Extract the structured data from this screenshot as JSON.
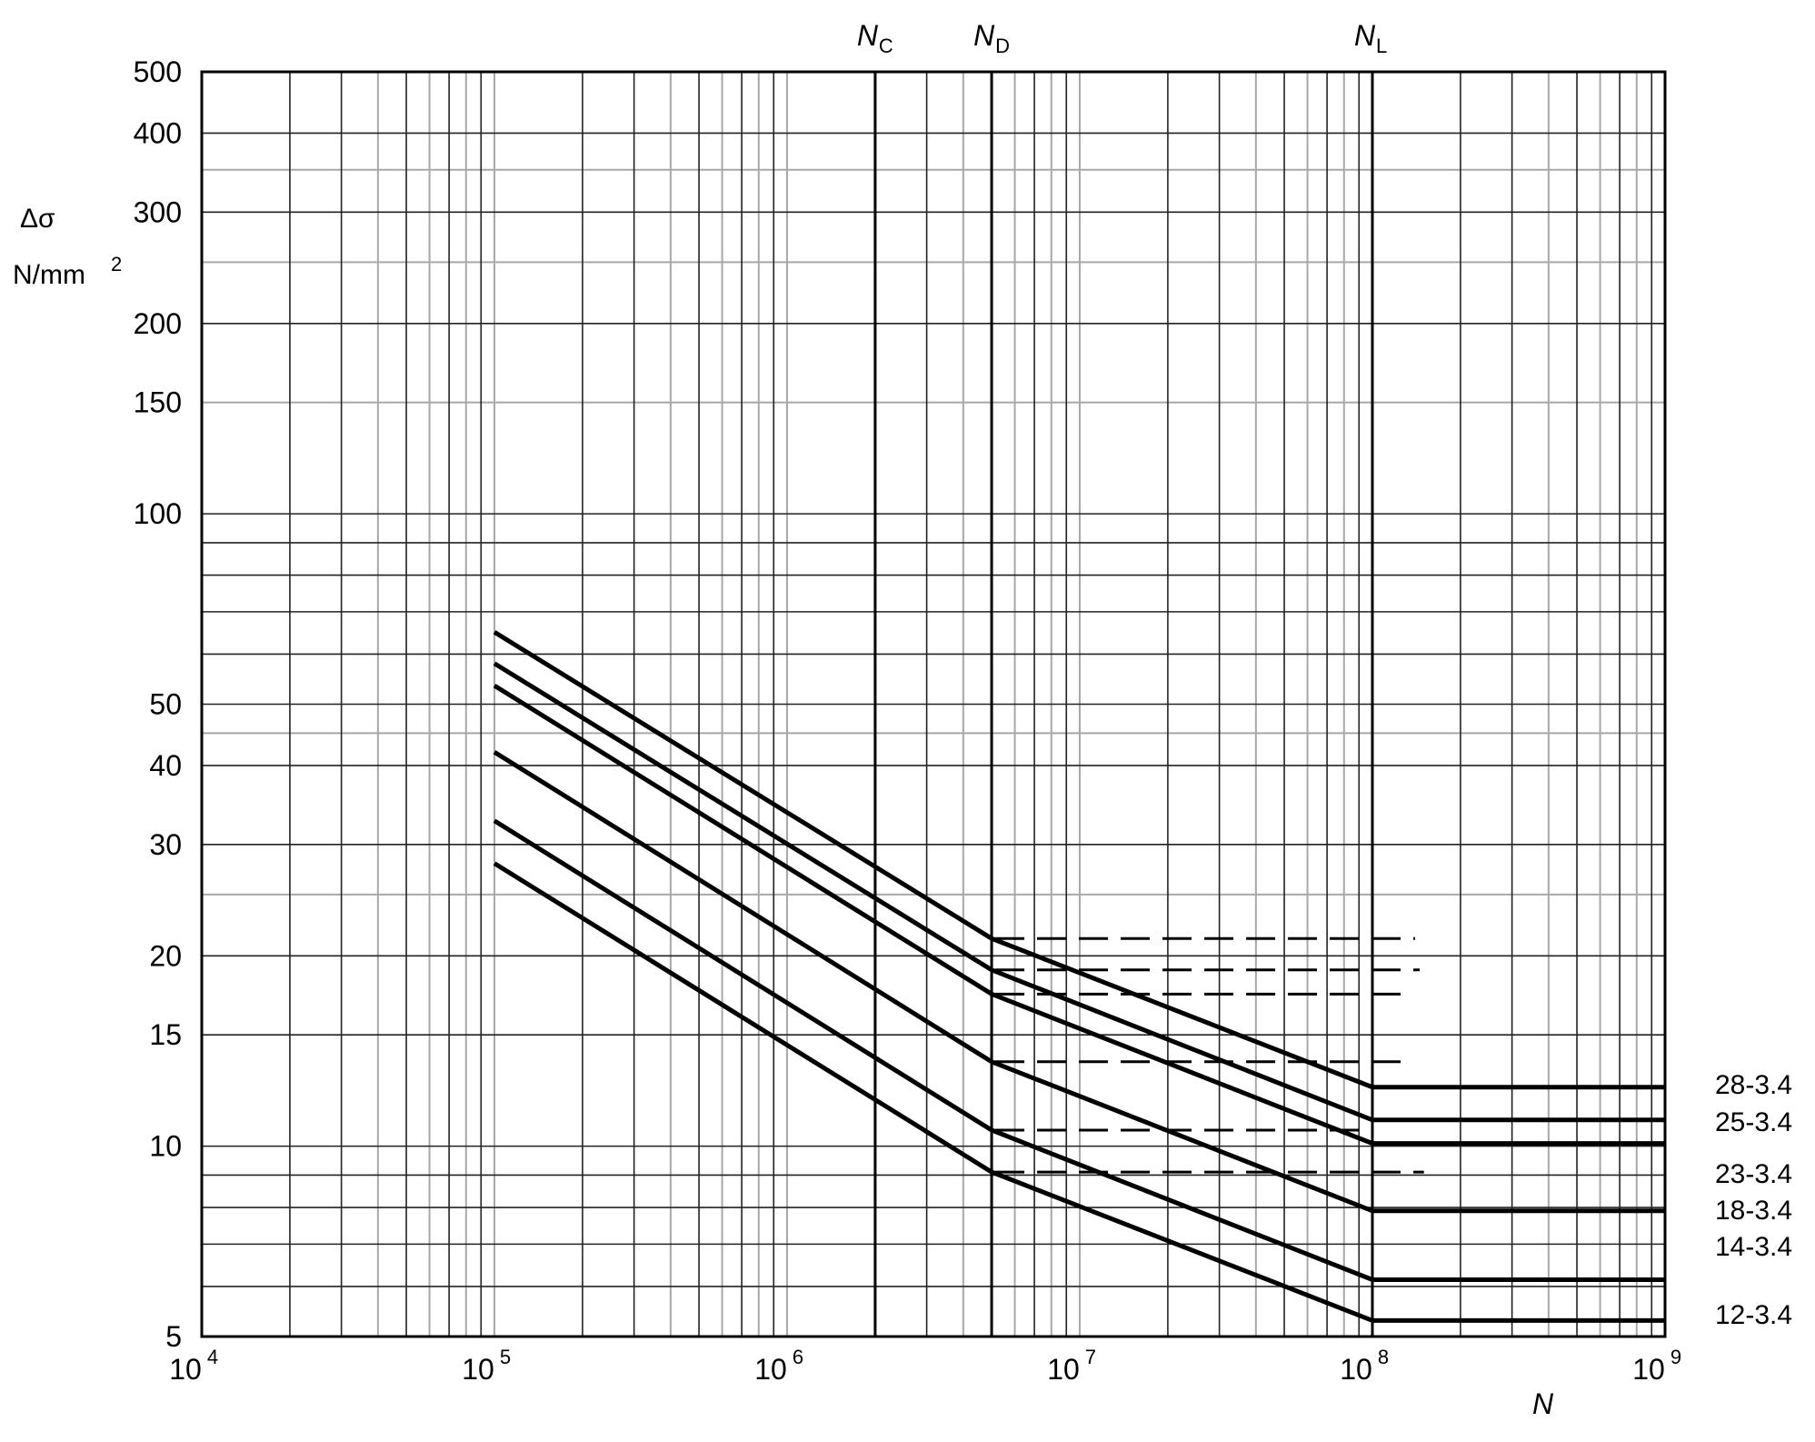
{
  "chart_data": {
    "type": "line",
    "title": "",
    "xlabel": "N",
    "ylabel": "Δσ",
    "ylabel_unit": "N/mm",
    "ylabel_unit_sup": "2",
    "x_scale": "log",
    "y_scale": "log",
    "xlim": [
      10000,
      1000000000
    ],
    "ylim": [
      5,
      500
    ],
    "grid": true,
    "x_ticks": [
      {
        "value": 10000,
        "base": "10",
        "exp": "4"
      },
      {
        "value": 100000,
        "base": "10",
        "exp": "5"
      },
      {
        "value": 1000000,
        "base": "10",
        "exp": "6"
      },
      {
        "value": 10000000,
        "base": "10",
        "exp": "7"
      },
      {
        "value": 100000000,
        "base": "10",
        "exp": "8"
      },
      {
        "value": 1000000000,
        "base": "10",
        "exp": "9"
      }
    ],
    "y_ticks": [
      {
        "value": 500,
        "label": "500"
      },
      {
        "value": 400,
        "label": "400"
      },
      {
        "value": 300,
        "label": "300"
      },
      {
        "value": 200,
        "label": "200"
      },
      {
        "value": 150,
        "label": "150"
      },
      {
        "value": 100,
        "label": "100"
      },
      {
        "value": 50,
        "label": "50"
      },
      {
        "value": 40,
        "label": "40"
      },
      {
        "value": 30,
        "label": "30"
      },
      {
        "value": 20,
        "label": "20"
      },
      {
        "value": 15,
        "label": "15"
      },
      {
        "value": 10,
        "label": "10"
      },
      {
        "value": 5,
        "label": "5"
      }
    ],
    "reference_lines": [
      {
        "name": "N",
        "sub": "C",
        "x": 2000000
      },
      {
        "name": "N",
        "sub": "D",
        "x": 5000000
      },
      {
        "name": "N",
        "sub": "L",
        "x": 100000000
      }
    ],
    "series": [
      {
        "name": "28-3.4",
        "x": [
          100000,
          5000000,
          100000000,
          1000000000
        ],
        "y": [
          65,
          21.3,
          12.4,
          12.4
        ],
        "dashed_level": 21.3,
        "dashed_to": 140000000
      },
      {
        "name": "25-3.4",
        "x": [
          100000,
          5000000,
          100000000,
          1000000000
        ],
        "y": [
          58,
          19.0,
          11.0,
          11.0
        ],
        "dashed_level": 19.0,
        "dashed_to": 145000000
      },
      {
        "name": "23-3.4",
        "x": [
          100000,
          5000000,
          100000000,
          1000000000
        ],
        "y": [
          53.5,
          17.4,
          10.1,
          10.1
        ],
        "dashed_level": 17.4,
        "dashed_to": 125000000
      },
      {
        "name": "18-3.4",
        "x": [
          100000,
          5000000,
          100000000,
          1000000000
        ],
        "y": [
          42,
          13.6,
          7.9,
          7.9
        ],
        "dashed_level": 13.6,
        "dashed_to": 125000000
      },
      {
        "name": "14-3.4",
        "x": [
          100000,
          5000000,
          100000000,
          1000000000
        ],
        "y": [
          32.7,
          10.6,
          6.15,
          6.15
        ],
        "dashed_level": 10.6,
        "dashed_to": 95000000
      },
      {
        "name": "12-3.4",
        "x": [
          100000,
          5000000,
          100000000,
          1000000000
        ],
        "y": [
          28,
          9.1,
          5.3,
          5.3
        ],
        "dashed_level": 9.1,
        "dashed_to": 150000000
      }
    ],
    "line_labels": [
      "28-3.4",
      "25-3.4",
      "23-3.4",
      "18-3.4",
      "14-3.4",
      "12-3.4"
    ]
  }
}
